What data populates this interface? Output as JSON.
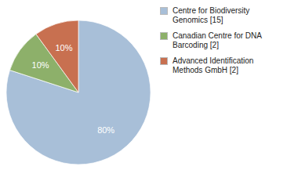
{
  "chart_data": {
    "type": "pie",
    "categories": [
      "Centre for Biodiversity\nGenomics [15]",
      "Canadian Centre for DNA\nBarcoding [2]",
      "Advanced Identification\nMethods GmbH [2]"
    ],
    "values": [
      80,
      10,
      10
    ],
    "value_labels": [
      "80%",
      "10%",
      "10%"
    ],
    "colors": [
      "#a8bfd8",
      "#8db06a",
      "#c87050"
    ],
    "data_labels": true
  }
}
